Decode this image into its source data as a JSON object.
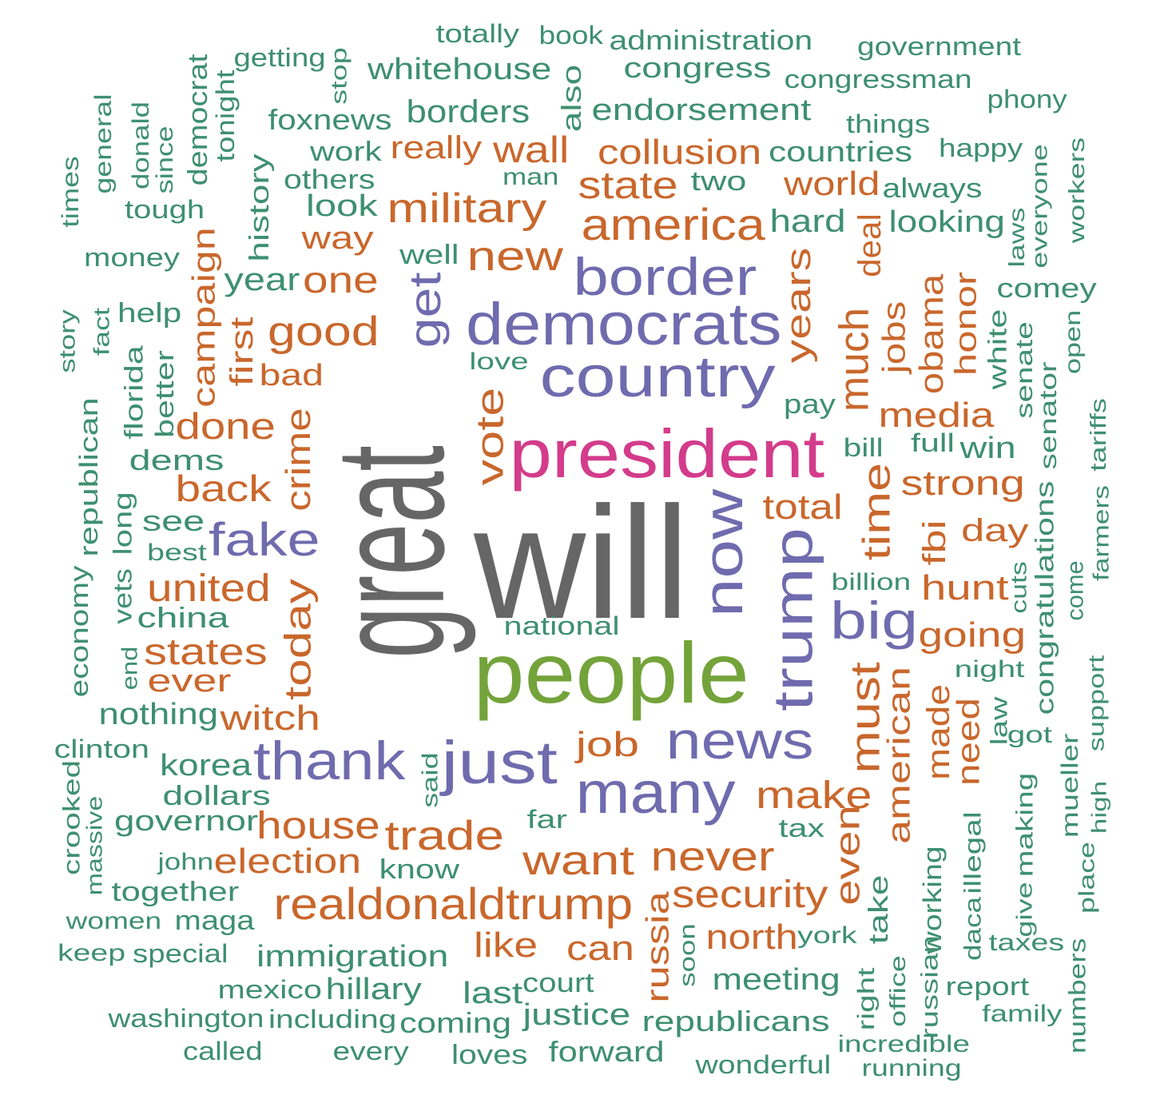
{
  "colors": {
    "gray": "#666666",
    "green": "#73A33A",
    "magenta": "#D33C8B",
    "purple": "#6F6BAE",
    "orange": "#C9672C",
    "teal": "#3E8F72"
  },
  "words": [
    {
      "text": "will",
      "color": "gray"
    },
    {
      "text": "great",
      "color": "gray"
    },
    {
      "text": "people",
      "color": "green"
    },
    {
      "text": "president",
      "color": "magenta"
    },
    {
      "text": "democrats",
      "color": "purple"
    },
    {
      "text": "country",
      "color": "purple"
    },
    {
      "text": "border",
      "color": "purple"
    },
    {
      "text": "now",
      "color": "purple"
    },
    {
      "text": "trump",
      "color": "purple"
    },
    {
      "text": "just",
      "color": "purple"
    },
    {
      "text": "many",
      "color": "purple"
    },
    {
      "text": "news",
      "color": "purple"
    },
    {
      "text": "thank",
      "color": "purple"
    },
    {
      "text": "get",
      "color": "purple"
    },
    {
      "text": "fake",
      "color": "purple"
    },
    {
      "text": "big",
      "color": "purple"
    },
    {
      "text": "realdonaldtrump",
      "color": "orange"
    },
    {
      "text": "america",
      "color": "orange"
    },
    {
      "text": "military",
      "color": "orange"
    },
    {
      "text": "new",
      "color": "orange"
    },
    {
      "text": "good",
      "color": "orange"
    },
    {
      "text": "one",
      "color": "orange"
    },
    {
      "text": "state",
      "color": "orange"
    },
    {
      "text": "collusion",
      "color": "orange"
    },
    {
      "text": "wall",
      "color": "orange"
    },
    {
      "text": "really",
      "color": "orange"
    },
    {
      "text": "way",
      "color": "orange"
    },
    {
      "text": "world",
      "color": "orange"
    },
    {
      "text": "deal",
      "color": "orange"
    },
    {
      "text": "years",
      "color": "orange"
    },
    {
      "text": "much",
      "color": "orange"
    },
    {
      "text": "jobs",
      "color": "orange"
    },
    {
      "text": "obama",
      "color": "orange"
    },
    {
      "text": "honor",
      "color": "orange"
    },
    {
      "text": "media",
      "color": "orange"
    },
    {
      "text": "strong",
      "color": "orange"
    },
    {
      "text": "vote",
      "color": "orange"
    },
    {
      "text": "time",
      "color": "orange"
    },
    {
      "text": "fbi",
      "color": "orange"
    },
    {
      "text": "day",
      "color": "orange"
    },
    {
      "text": "hunt",
      "color": "orange"
    },
    {
      "text": "going",
      "color": "orange"
    },
    {
      "text": "total",
      "color": "orange"
    },
    {
      "text": "campaign",
      "color": "orange"
    },
    {
      "text": "first",
      "color": "orange"
    },
    {
      "text": "bad",
      "color": "orange"
    },
    {
      "text": "done",
      "color": "orange"
    },
    {
      "text": "crime",
      "color": "orange"
    },
    {
      "text": "back",
      "color": "orange"
    },
    {
      "text": "united",
      "color": "orange"
    },
    {
      "text": "today",
      "color": "orange"
    },
    {
      "text": "states",
      "color": "orange"
    },
    {
      "text": "ever",
      "color": "orange"
    },
    {
      "text": "witch",
      "color": "orange"
    },
    {
      "text": "job",
      "color": "orange"
    },
    {
      "text": "must",
      "color": "orange"
    },
    {
      "text": "american",
      "color": "orange"
    },
    {
      "text": "made",
      "color": "orange"
    },
    {
      "text": "need",
      "color": "orange"
    },
    {
      "text": "make",
      "color": "orange"
    },
    {
      "text": "even",
      "color": "orange"
    },
    {
      "text": "house",
      "color": "orange"
    },
    {
      "text": "trade",
      "color": "orange"
    },
    {
      "text": "want",
      "color": "orange"
    },
    {
      "text": "never",
      "color": "orange"
    },
    {
      "text": "election",
      "color": "orange"
    },
    {
      "text": "security",
      "color": "orange"
    },
    {
      "text": "russia",
      "color": "orange"
    },
    {
      "text": "like",
      "color": "orange"
    },
    {
      "text": "can",
      "color": "orange"
    },
    {
      "text": "north",
      "color": "orange"
    },
    {
      "text": "totally",
      "color": "teal"
    },
    {
      "text": "book",
      "color": "teal"
    },
    {
      "text": "administration",
      "color": "teal"
    },
    {
      "text": "government",
      "color": "teal"
    },
    {
      "text": "getting",
      "color": "teal"
    },
    {
      "text": "stop",
      "color": "teal"
    },
    {
      "text": "whitehouse",
      "color": "teal"
    },
    {
      "text": "congress",
      "color": "teal"
    },
    {
      "text": "congressman",
      "color": "teal"
    },
    {
      "text": "phony",
      "color": "teal"
    },
    {
      "text": "democrat",
      "color": "teal"
    },
    {
      "text": "tonight",
      "color": "teal"
    },
    {
      "text": "foxnews",
      "color": "teal"
    },
    {
      "text": "borders",
      "color": "teal"
    },
    {
      "text": "also",
      "color": "teal"
    },
    {
      "text": "endorsement",
      "color": "teal"
    },
    {
      "text": "things",
      "color": "teal"
    },
    {
      "text": "general",
      "color": "teal"
    },
    {
      "text": "donald",
      "color": "teal"
    },
    {
      "text": "since",
      "color": "teal"
    },
    {
      "text": "times",
      "color": "teal"
    },
    {
      "text": "work",
      "color": "teal"
    },
    {
      "text": "others",
      "color": "teal"
    },
    {
      "text": "man",
      "color": "teal"
    },
    {
      "text": "countries",
      "color": "teal"
    },
    {
      "text": "happy",
      "color": "teal"
    },
    {
      "text": "everyone",
      "color": "teal"
    },
    {
      "text": "workers",
      "color": "teal"
    },
    {
      "text": "tough",
      "color": "teal"
    },
    {
      "text": "history",
      "color": "teal"
    },
    {
      "text": "look",
      "color": "teal"
    },
    {
      "text": "two",
      "color": "teal"
    },
    {
      "text": "always",
      "color": "teal"
    },
    {
      "text": "hard",
      "color": "teal"
    },
    {
      "text": "looking",
      "color": "teal"
    },
    {
      "text": "laws",
      "color": "teal"
    },
    {
      "text": "money",
      "color": "teal"
    },
    {
      "text": "well",
      "color": "teal"
    },
    {
      "text": "year",
      "color": "teal"
    },
    {
      "text": "comey",
      "color": "teal"
    },
    {
      "text": "story",
      "color": "teal"
    },
    {
      "text": "fact",
      "color": "teal"
    },
    {
      "text": "help",
      "color": "teal"
    },
    {
      "text": "white",
      "color": "teal"
    },
    {
      "text": "senate",
      "color": "teal"
    },
    {
      "text": "open",
      "color": "teal"
    },
    {
      "text": "love",
      "color": "teal"
    },
    {
      "text": "florida",
      "color": "teal"
    },
    {
      "text": "better",
      "color": "teal"
    },
    {
      "text": "pay",
      "color": "teal"
    },
    {
      "text": "senator",
      "color": "teal"
    },
    {
      "text": "republican",
      "color": "teal"
    },
    {
      "text": "dems",
      "color": "teal"
    },
    {
      "text": "bill",
      "color": "teal"
    },
    {
      "text": "full",
      "color": "teal"
    },
    {
      "text": "win",
      "color": "teal"
    },
    {
      "text": "tariffs",
      "color": "teal"
    },
    {
      "text": "long",
      "color": "teal"
    },
    {
      "text": "see",
      "color": "teal"
    },
    {
      "text": "best",
      "color": "teal"
    },
    {
      "text": "congratulations",
      "color": "teal"
    },
    {
      "text": "farmers",
      "color": "teal"
    },
    {
      "text": "economy",
      "color": "teal"
    },
    {
      "text": "vets",
      "color": "teal"
    },
    {
      "text": "billion",
      "color": "teal"
    },
    {
      "text": "cuts",
      "color": "teal"
    },
    {
      "text": "come",
      "color": "teal"
    },
    {
      "text": "china",
      "color": "teal"
    },
    {
      "text": "national",
      "color": "teal"
    },
    {
      "text": "end",
      "color": "teal"
    },
    {
      "text": "night",
      "color": "teal"
    },
    {
      "text": "nothing",
      "color": "teal"
    },
    {
      "text": "law",
      "color": "teal"
    },
    {
      "text": "support",
      "color": "teal"
    },
    {
      "text": "got",
      "color": "teal"
    },
    {
      "text": "clinton",
      "color": "teal"
    },
    {
      "text": "korea",
      "color": "teal"
    },
    {
      "text": "mueller",
      "color": "teal"
    },
    {
      "text": "high",
      "color": "teal"
    },
    {
      "text": "crooked",
      "color": "teal"
    },
    {
      "text": "dollars",
      "color": "teal"
    },
    {
      "text": "said",
      "color": "teal"
    },
    {
      "text": "massive",
      "color": "teal"
    },
    {
      "text": "governor",
      "color": "teal"
    },
    {
      "text": "far",
      "color": "teal"
    },
    {
      "text": "tax",
      "color": "teal"
    },
    {
      "text": "illegal",
      "color": "teal"
    },
    {
      "text": "making",
      "color": "teal"
    },
    {
      "text": "john",
      "color": "teal"
    },
    {
      "text": "know",
      "color": "teal"
    },
    {
      "text": "working",
      "color": "teal"
    },
    {
      "text": "daca",
      "color": "teal"
    },
    {
      "text": "give",
      "color": "teal"
    },
    {
      "text": "place",
      "color": "teal"
    },
    {
      "text": "together",
      "color": "teal"
    },
    {
      "text": "women",
      "color": "teal"
    },
    {
      "text": "maga",
      "color": "teal"
    },
    {
      "text": "take",
      "color": "teal"
    },
    {
      "text": "york",
      "color": "teal"
    },
    {
      "text": "taxes",
      "color": "teal"
    },
    {
      "text": "keep",
      "color": "teal"
    },
    {
      "text": "special",
      "color": "teal"
    },
    {
      "text": "immigration",
      "color": "teal"
    },
    {
      "text": "soon",
      "color": "teal"
    },
    {
      "text": "russian",
      "color": "teal"
    },
    {
      "text": "numbers",
      "color": "teal"
    },
    {
      "text": "mexico",
      "color": "teal"
    },
    {
      "text": "hillary",
      "color": "teal"
    },
    {
      "text": "last",
      "color": "teal"
    },
    {
      "text": "court",
      "color": "teal"
    },
    {
      "text": "meeting",
      "color": "teal"
    },
    {
      "text": "right",
      "color": "teal"
    },
    {
      "text": "office",
      "color": "teal"
    },
    {
      "text": "report",
      "color": "teal"
    },
    {
      "text": "washington",
      "color": "teal"
    },
    {
      "text": "including",
      "color": "teal"
    },
    {
      "text": "coming",
      "color": "teal"
    },
    {
      "text": "justice",
      "color": "teal"
    },
    {
      "text": "republicans",
      "color": "teal"
    },
    {
      "text": "family",
      "color": "teal"
    },
    {
      "text": "called",
      "color": "teal"
    },
    {
      "text": "every",
      "color": "teal"
    },
    {
      "text": "loves",
      "color": "teal"
    },
    {
      "text": "forward",
      "color": "teal"
    },
    {
      "text": "incredible",
      "color": "teal"
    },
    {
      "text": "wonderful",
      "color": "teal"
    },
    {
      "text": "running",
      "color": "teal"
    }
  ]
}
